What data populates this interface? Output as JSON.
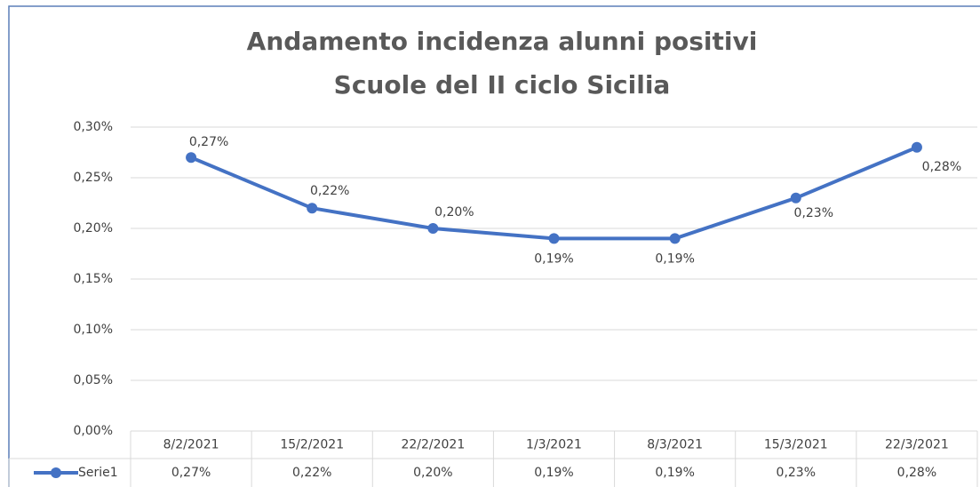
{
  "chart_data": {
    "type": "line",
    "title": "Andamento incidenza alunni positivi",
    "subtitle": "Scuole del II ciclo Sicilia",
    "categories": [
      "8/2/2021",
      "15/2/2021",
      "22/2/2021",
      "1/3/2021",
      "8/3/2021",
      "15/3/2021",
      "22/3/2021"
    ],
    "series": [
      {
        "name": "Serie1",
        "color": "#4472c4",
        "values": [
          0.27,
          0.22,
          0.2,
          0.19,
          0.19,
          0.23,
          0.28
        ],
        "value_labels": [
          "0,27%",
          "0,22%",
          "0,20%",
          "0,19%",
          "0,19%",
          "0,23%",
          "0,28%"
        ]
      }
    ],
    "ylim": [
      0,
      0.3
    ],
    "yticks": [
      {
        "value": 0,
        "label": "0,00%"
      },
      {
        "value": 0.05,
        "label": "0,05%"
      },
      {
        "value": 0.1,
        "label": "0,10%"
      },
      {
        "value": 0.15,
        "label": "0,15%"
      },
      {
        "value": 0.2,
        "label": "0,20%"
      },
      {
        "value": 0.25,
        "label": "0,25%"
      },
      {
        "value": 0.3,
        "label": "0,30%"
      }
    ],
    "grid": true,
    "data_table": true
  }
}
